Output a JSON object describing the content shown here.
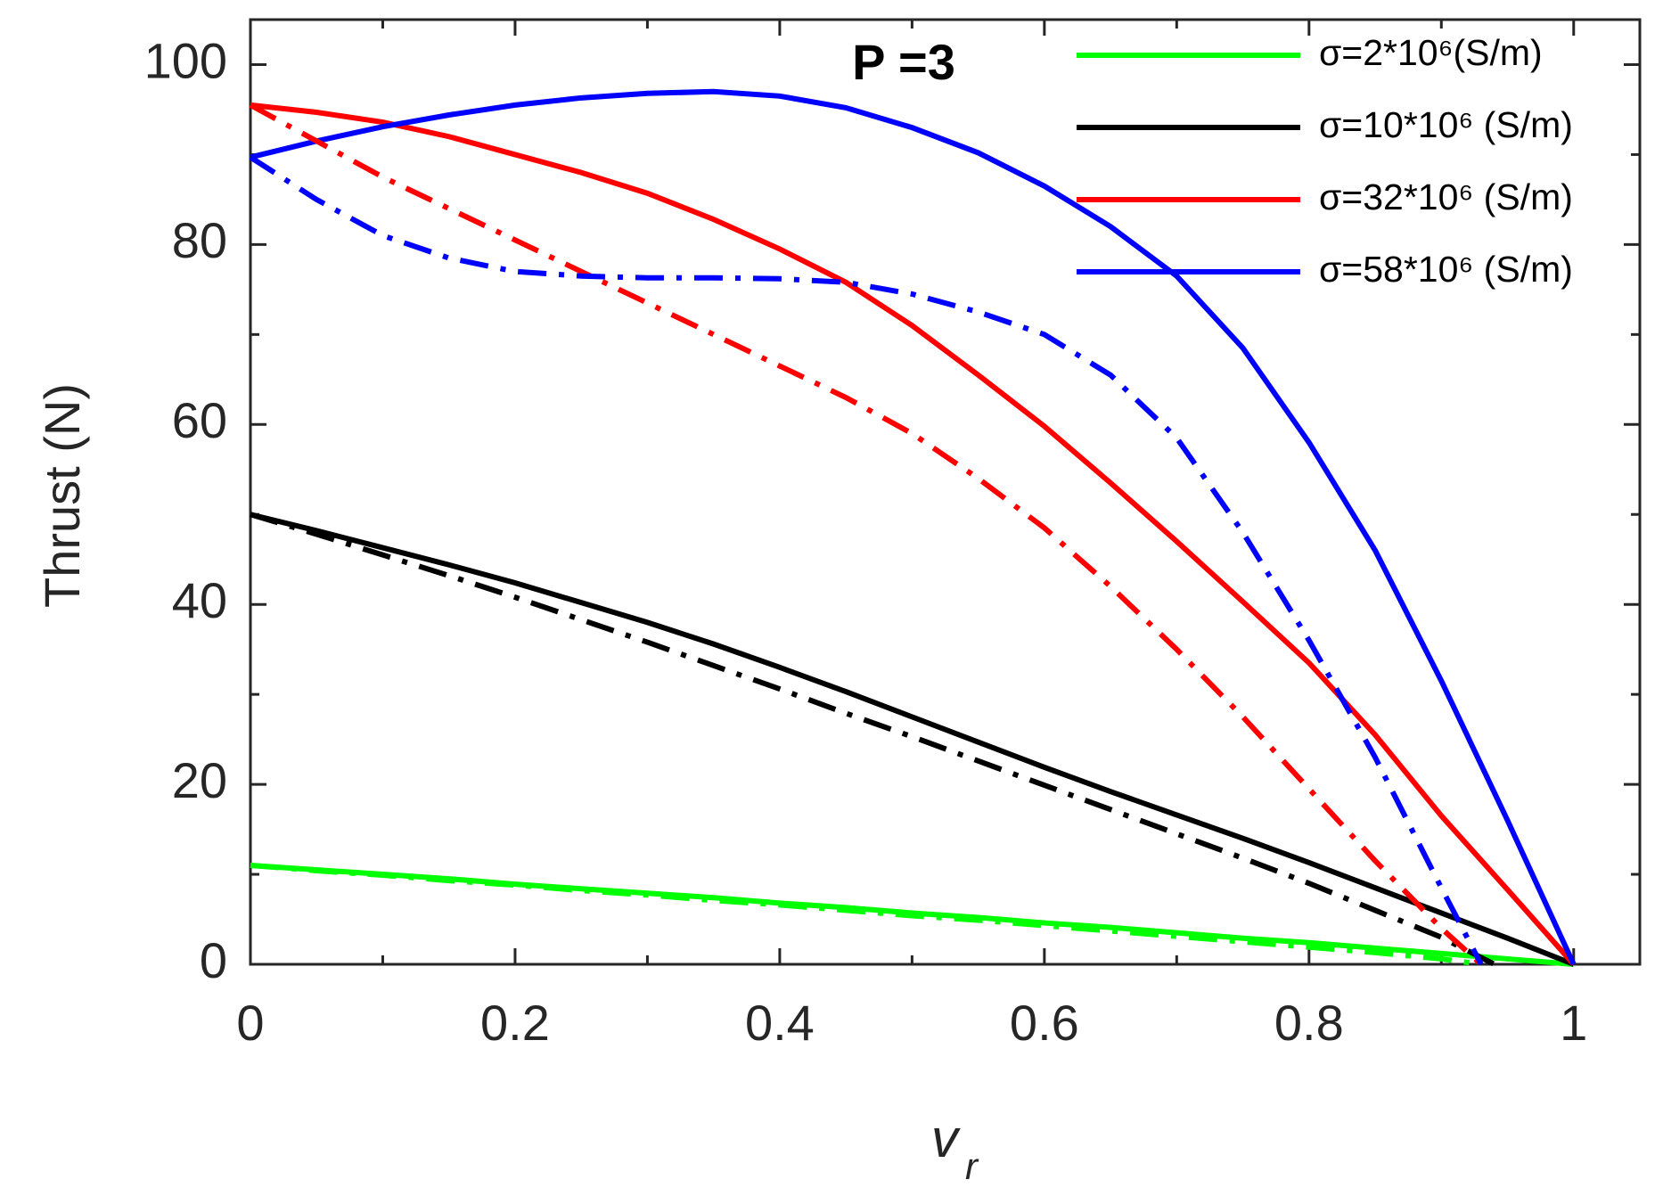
{
  "chart_data": {
    "type": "line",
    "title": "P =3",
    "ylabel": "Thrust (N)",
    "xlabel": {
      "text": "v",
      "subscript": "r"
    },
    "xlim": [
      0,
      1.05
    ],
    "ylim": [
      0,
      105
    ],
    "xticks": [
      0,
      0.2,
      0.4,
      0.6,
      0.8,
      1
    ],
    "yticks": [
      0,
      20,
      40,
      60,
      80,
      100
    ],
    "xminorticks": [
      0.1,
      0.3,
      0.5,
      0.7,
      0.9
    ],
    "yminorticks": [
      10,
      30,
      50,
      70,
      90
    ],
    "grid": false,
    "legend": "upper right",
    "x": [
      0,
      0.05,
      0.1,
      0.15,
      0.2,
      0.25,
      0.3,
      0.35,
      0.4,
      0.45,
      0.5,
      0.55,
      0.6,
      0.65,
      0.7,
      0.75,
      0.8,
      0.85,
      0.9,
      0.95,
      1
    ],
    "series": [
      {
        "name": "σ=2*10⁶(S/m)",
        "color": "#00ff00",
        "style": "solid",
        "values": [
          11,
          10.5,
          10,
          9.5,
          8.9,
          8.4,
          7.9,
          7.4,
          6.8,
          6.3,
          5.7,
          5.2,
          4.6,
          4.1,
          3.5,
          2.9,
          2.4,
          1.8,
          1.2,
          0.6,
          0
        ]
      },
      {
        "name": "σ=10*10⁶ (S/m)",
        "color": "#000000",
        "style": "solid",
        "values": [
          50,
          48.2,
          46.3,
          44.4,
          42.4,
          40.2,
          38,
          35.6,
          33,
          30.3,
          27.5,
          24.7,
          21.9,
          19.2,
          16.6,
          14,
          11.3,
          8.5,
          5.7,
          2.9,
          0
        ]
      },
      {
        "name": "σ=32*10⁶ (S/m)",
        "color": "#ff0000",
        "style": "solid",
        "values": [
          95.5,
          94.7,
          93.6,
          92,
          90,
          88,
          85.7,
          82.8,
          79.5,
          75.8,
          71,
          65.5,
          59.8,
          53.5,
          47,
          40.3,
          33.5,
          25.5,
          16.5,
          8.3,
          0
        ]
      },
      {
        "name": "σ=58*10⁶ (S/m)",
        "color": "#0000ff",
        "style": "solid",
        "values": [
          89.7,
          91.5,
          93.1,
          94.4,
          95.5,
          96.3,
          96.8,
          97,
          96.5,
          95.2,
          93,
          90.2,
          86.5,
          82,
          76.5,
          68.5,
          58,
          46,
          31.5,
          16,
          0
        ]
      },
      {
        "color": "#00ff00",
        "style": "dashdot",
        "x": [
          0,
          0.05,
          0.1,
          0.15,
          0.2,
          0.25,
          0.3,
          0.35,
          0.4,
          0.45,
          0.5,
          0.55,
          0.6,
          0.65,
          0.7,
          0.75,
          0.8,
          0.85,
          0.9,
          0.93
        ],
        "values": [
          11,
          10.4,
          9.9,
          9.3,
          8.8,
          8.2,
          7.7,
          7.1,
          6.6,
          6.0,
          5.4,
          4.9,
          4.3,
          3.7,
          3.1,
          2.5,
          1.9,
          1.3,
          0.6,
          0
        ]
      },
      {
        "color": "#000000",
        "style": "dashdot",
        "x": [
          0,
          0.05,
          0.1,
          0.15,
          0.2,
          0.25,
          0.3,
          0.35,
          0.4,
          0.45,
          0.5,
          0.55,
          0.6,
          0.65,
          0.7,
          0.75,
          0.8,
          0.85,
          0.9,
          0.94
        ],
        "values": [
          50,
          47.8,
          45.5,
          43.2,
          40.8,
          38.3,
          35.8,
          33.2,
          30.6,
          27.9,
          25.3,
          22.6,
          19.9,
          17.2,
          14.5,
          11.8,
          9,
          6,
          3,
          0
        ]
      },
      {
        "color": "#ff0000",
        "style": "dashdot",
        "x": [
          0,
          0.05,
          0.1,
          0.15,
          0.2,
          0.25,
          0.3,
          0.35,
          0.4,
          0.45,
          0.5,
          0.55,
          0.6,
          0.65,
          0.7,
          0.75,
          0.8,
          0.85,
          0.9,
          0.93
        ],
        "values": [
          95.5,
          91.5,
          87.5,
          84,
          80.5,
          77,
          73.5,
          70,
          66.5,
          63,
          59,
          54,
          48.5,
          42,
          35,
          27.5,
          19.5,
          11.5,
          4,
          0
        ]
      },
      {
        "color": "#0000ff",
        "style": "dashdot",
        "x": [
          0,
          0.05,
          0.1,
          0.15,
          0.2,
          0.25,
          0.3,
          0.35,
          0.4,
          0.45,
          0.5,
          0.55,
          0.6,
          0.65,
          0.7,
          0.75,
          0.8,
          0.85,
          0.9,
          0.93
        ],
        "values": [
          89.7,
          85,
          81,
          78.5,
          77,
          76.5,
          76.3,
          76.3,
          76.2,
          75.8,
          74.5,
          72.5,
          70,
          65.5,
          58.5,
          48,
          36,
          23,
          8.5,
          0
        ]
      }
    ]
  }
}
